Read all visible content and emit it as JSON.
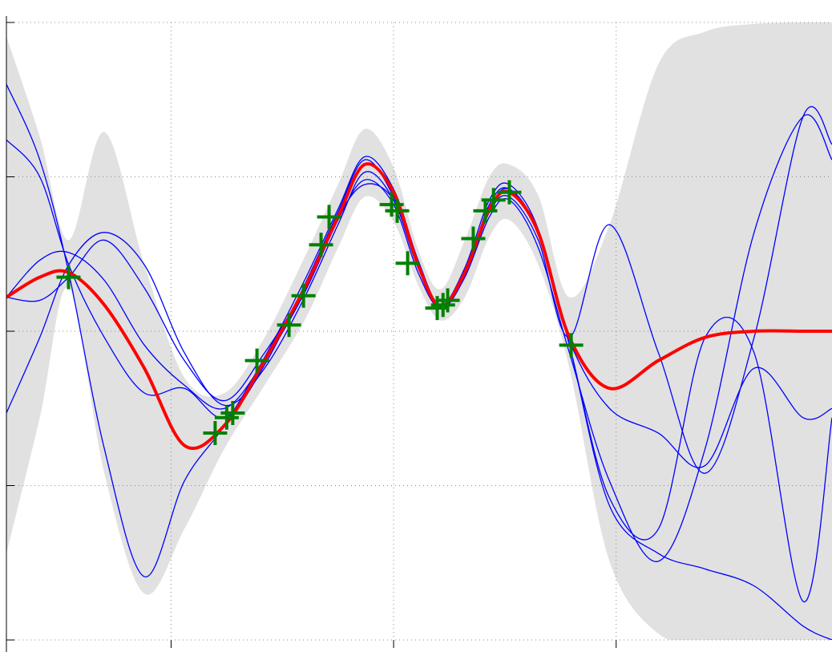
{
  "chart_data": {
    "type": "line",
    "x": [
      0.26,
      0.41,
      0.54,
      0.7,
      0.88,
      1.06,
      1.24,
      1.42,
      1.6,
      1.75,
      1.87,
      2.0,
      2.11,
      2.21,
      2.32,
      2.43,
      2.52,
      2.65,
      2.79,
      2.97,
      3.19,
      3.4,
      3.62,
      3.84,
      3.97
    ],
    "xlim": [
      0.26,
      3.97
    ],
    "ylim": [
      -2,
      2
    ],
    "xticks": [
      1,
      2,
      3
    ],
    "yticks": [
      -2,
      -1,
      0,
      1,
      2
    ],
    "grid": true,
    "band": {
      "color": "#e1e1e1",
      "upper": [
        1.91,
        1.26,
        0.59,
        1.29,
        0.43,
        -0.3,
        -0.4,
        -0.04,
        0.48,
        0.95,
        1.31,
        1.06,
        0.53,
        0.27,
        0.59,
        1.0,
        1.08,
        0.88,
        0.22,
        0.69,
        1.73,
        1.94,
        1.99,
        2.0,
        2.0
      ],
      "lower": [
        -1.44,
        -0.56,
        0.28,
        -0.92,
        -1.7,
        -1.28,
        -0.76,
        -0.35,
        0.07,
        0.54,
        0.87,
        0.71,
        0.3,
        0.07,
        0.22,
        0.61,
        0.72,
        0.43,
        -0.24,
        -1.49,
        -1.96,
        -2.0,
        -2.0,
        -2.0,
        -2.0
      ]
    },
    "series": [
      {
        "color": "#0000ff",
        "width": 1.3,
        "values": [
          1.6,
          1.11,
          0.38,
          -0.76,
          -1.59,
          -0.97,
          -0.61,
          -0.17,
          0.33,
          0.79,
          1.13,
          0.92,
          0.46,
          0.17,
          0.41,
          0.85,
          0.95,
          0.66,
          -0.09,
          -1.13,
          -1.44,
          -1.54,
          -1.65,
          -1.91,
          -2.0
        ]
      },
      {
        "color": "#0000ff",
        "width": 1.3,
        "values": [
          1.24,
          1.0,
          0.43,
          -0.04,
          -0.4,
          -0.37,
          -0.56,
          -0.22,
          0.3,
          0.77,
          1.11,
          0.87,
          0.43,
          0.15,
          0.35,
          0.77,
          0.87,
          0.59,
          -0.04,
          0.69,
          -0.14,
          -0.92,
          -0.04,
          1.39,
          1.21
        ]
      },
      {
        "color": "#0000ff",
        "width": 1.3,
        "values": [
          -0.53,
          -0.04,
          0.43,
          0.64,
          0.43,
          -0.14,
          -0.48,
          -0.24,
          0.22,
          0.69,
          1.03,
          0.85,
          0.41,
          0.17,
          0.38,
          0.82,
          0.92,
          0.64,
          -0.06,
          -0.5,
          -0.66,
          -0.87,
          -0.24,
          -0.56,
          -0.5
        ]
      },
      {
        "color": "#0000ff",
        "width": 1.3,
        "values": [
          0.22,
          0.46,
          0.51,
          0.33,
          -0.09,
          -0.35,
          -0.5,
          -0.19,
          0.25,
          0.72,
          0.98,
          0.82,
          0.38,
          0.15,
          0.35,
          0.74,
          0.85,
          0.54,
          -0.14,
          -0.97,
          -1.49,
          -0.76,
          0.64,
          1.39,
          1.11
        ]
      },
      {
        "color": "#0000ff",
        "width": 1.3,
        "values": [
          0.22,
          0.2,
          0.35,
          0.59,
          0.28,
          -0.19,
          -0.45,
          -0.14,
          0.28,
          0.74,
          0.95,
          0.85,
          0.41,
          0.17,
          0.38,
          0.79,
          0.92,
          0.64,
          -0.09,
          -1.08,
          -1.28,
          -0.04,
          -0.14,
          -1.75,
          -0.56
        ]
      },
      {
        "color": "#ff0000",
        "width": 4,
        "values": [
          0.22,
          0.35,
          0.38,
          0.17,
          -0.24,
          -0.74,
          -0.61,
          -0.19,
          0.28,
          0.74,
          1.08,
          0.9,
          0.43,
          0.16,
          0.38,
          0.79,
          0.9,
          0.64,
          -0.04,
          -0.37,
          -0.19,
          -0.04,
          0,
          0,
          0
        ]
      }
    ],
    "points": {
      "color": "#008000",
      "x": [
        0.539,
        1.198,
        1.25,
        1.277,
        1.386,
        1.53,
        1.595,
        1.674,
        1.71,
        1.991,
        2.016,
        2.063,
        2.196,
        2.222,
        2.243,
        2.358,
        2.412,
        2.449,
        2.52,
        2.798
      ],
      "y": [
        0.35,
        -0.66,
        -0.56,
        -0.53,
        -0.19,
        0.04,
        0.23,
        0.56,
        0.74,
        0.82,
        0.78,
        0.44,
        0.15,
        0.17,
        0.2,
        0.6,
        0.78,
        0.85,
        0.9,
        -0.09
      ]
    }
  }
}
